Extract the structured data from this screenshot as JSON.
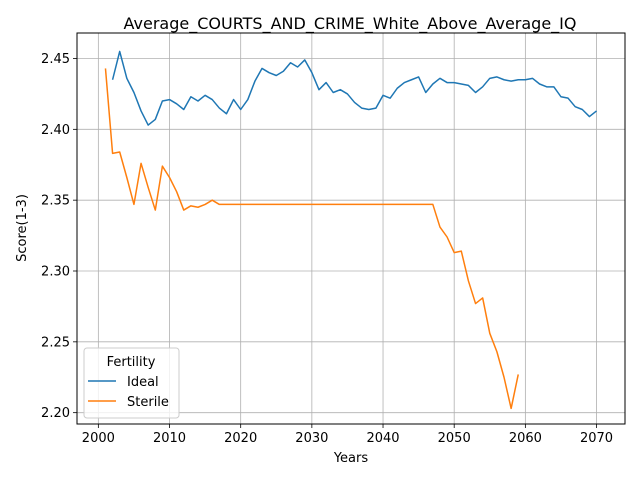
{
  "chart_data": {
    "type": "line",
    "title": "Average_COURTS_AND_CRIME_White_Above_Average_IQ",
    "xlabel": "Years",
    "ylabel": "Score(1-3)",
    "xlim": [
      1997,
      2074
    ],
    "ylim": [
      2.192,
      2.468
    ],
    "xticks": [
      2000,
      2010,
      2020,
      2030,
      2040,
      2050,
      2060,
      2070
    ],
    "yticks": [
      2.2,
      2.25,
      2.3,
      2.35,
      2.4,
      2.45
    ],
    "ytick_labels": [
      "2.20",
      "2.25",
      "2.30",
      "2.35",
      "2.40",
      "2.45"
    ],
    "grid": true,
    "legend": {
      "title": "Fertility",
      "placement": "lower-left"
    },
    "series": [
      {
        "name": "Ideal",
        "color": "#1f77b4",
        "x": [
          2002,
          2003,
          2004,
          2005,
          2006,
          2007,
          2008,
          2009,
          2010,
          2011,
          2012,
          2013,
          2014,
          2015,
          2016,
          2017,
          2018,
          2019,
          2020,
          2021,
          2022,
          2023,
          2024,
          2025,
          2026,
          2027,
          2028,
          2029,
          2030,
          2031,
          2032,
          2033,
          2034,
          2035,
          2036,
          2037,
          2038,
          2039,
          2040,
          2041,
          2042,
          2043,
          2044,
          2045,
          2046,
          2047,
          2048,
          2049,
          2050,
          2051,
          2052,
          2053,
          2054,
          2055,
          2056,
          2057,
          2058,
          2059,
          2060,
          2061,
          2062,
          2063,
          2064,
          2065,
          2066,
          2067,
          2068,
          2069,
          2070
        ],
        "y": [
          2.435,
          2.455,
          2.436,
          2.426,
          2.413,
          2.403,
          2.407,
          2.42,
          2.421,
          2.418,
          2.414,
          2.423,
          2.42,
          2.424,
          2.421,
          2.415,
          2.411,
          2.421,
          2.414,
          2.421,
          2.434,
          2.443,
          2.44,
          2.438,
          2.441,
          2.447,
          2.444,
          2.449,
          2.44,
          2.428,
          2.433,
          2.426,
          2.428,
          2.425,
          2.419,
          2.415,
          2.414,
          2.415,
          2.424,
          2.422,
          2.429,
          2.433,
          2.435,
          2.437,
          2.426,
          2.432,
          2.436,
          2.433,
          2.433,
          2.432,
          2.431,
          2.426,
          2.43,
          2.436,
          2.437,
          2.435,
          2.434,
          2.435,
          2.435,
          2.436,
          2.432,
          2.43,
          2.43,
          2.423,
          2.422,
          2.416,
          2.414,
          2.409,
          2.413
        ]
      },
      {
        "name": "Sterile",
        "color": "#ff7f0e",
        "x": [
          2001,
          2002,
          2003,
          2004,
          2005,
          2006,
          2007,
          2008,
          2009,
          2010,
          2011,
          2012,
          2013,
          2014,
          2015,
          2016,
          2017,
          2018,
          2019,
          2020,
          2021,
          2022,
          2023,
          2024,
          2025,
          2026,
          2027,
          2028,
          2029,
          2030,
          2031,
          2032,
          2033,
          2034,
          2035,
          2036,
          2037,
          2038,
          2039,
          2040,
          2041,
          2042,
          2043,
          2044,
          2045,
          2046,
          2047,
          2048,
          2049,
          2050,
          2051,
          2052,
          2053,
          2054,
          2055,
          2056,
          2057,
          2058,
          2059
        ],
        "y": [
          2.443,
          2.383,
          2.384,
          2.366,
          2.347,
          2.376,
          2.359,
          2.343,
          2.374,
          2.366,
          2.356,
          2.343,
          2.346,
          2.345,
          2.347,
          2.35,
          2.347,
          2.347,
          2.347,
          2.347,
          2.347,
          2.347,
          2.347,
          2.347,
          2.347,
          2.347,
          2.347,
          2.347,
          2.347,
          2.347,
          2.347,
          2.347,
          2.347,
          2.347,
          2.347,
          2.347,
          2.347,
          2.347,
          2.347,
          2.347,
          2.347,
          2.347,
          2.347,
          2.347,
          2.347,
          2.347,
          2.347,
          2.331,
          2.324,
          2.313,
          2.314,
          2.293,
          2.277,
          2.281,
          2.256,
          2.243,
          2.225,
          2.203,
          2.227
        ]
      }
    ]
  }
}
